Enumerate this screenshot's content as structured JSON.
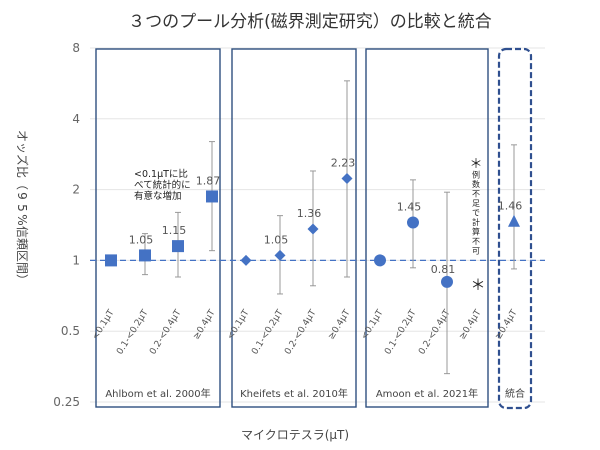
{
  "chart_data": {
    "type": "scatter",
    "title": "３つのプール分析(磁界測定研究）の比較と統合",
    "xlabel": "マイクロテスラ(μT)",
    "ylabel": "オッズ比（95%信頼区間）",
    "yscale": "log",
    "ylim": [
      0.25,
      8
    ],
    "yticks": [
      "0.25",
      "0.5",
      "1",
      "2",
      "4",
      "8"
    ],
    "reference_line": 1,
    "panels": [
      {
        "study": "Ahlbom et al. 2000年",
        "marker": "square",
        "annotation": "<0.1μTに比べて統計的に有意な増加",
        "points": [
          {
            "x": "<0.1μT",
            "or": 1,
            "lo": 1,
            "hi": 1,
            "label": ""
          },
          {
            "x": "0.1-<0.2μT",
            "or": 1.05,
            "lo": 0.87,
            "hi": 1.3,
            "label": "1.05"
          },
          {
            "x": "0.2-<0.4μT",
            "or": 1.15,
            "lo": 0.85,
            "hi": 1.6,
            "label": "1.15"
          },
          {
            "x": "≥0.4μT",
            "or": 1.87,
            "lo": 1.1,
            "hi": 3.2,
            "label": "1.87"
          }
        ]
      },
      {
        "study": "Kheifets et al. 2010年",
        "marker": "diamond",
        "annotation": "",
        "points": [
          {
            "x": "<0.1μT",
            "or": 1,
            "lo": 1,
            "hi": 1,
            "label": ""
          },
          {
            "x": "0.1-<0.2μT",
            "or": 1.05,
            "lo": 0.72,
            "hi": 1.55,
            "label": "1.05"
          },
          {
            "x": "0.2-<0.4μT",
            "or": 1.36,
            "lo": 0.78,
            "hi": 2.4,
            "label": "1.36"
          },
          {
            "x": "≥0.4μT",
            "or": 2.23,
            "lo": 0.85,
            "hi": 5.8,
            "label": "2.23"
          }
        ]
      },
      {
        "study": "Amoon et al. 2021年",
        "marker": "circle",
        "annotation": "＊例数不足で計算不可",
        "points": [
          {
            "x": "<0.1μT",
            "or": 1,
            "lo": 1,
            "hi": 1,
            "label": ""
          },
          {
            "x": "0.1-<0.2μT",
            "or": 1.45,
            "lo": 0.93,
            "hi": 2.2,
            "label": "1.45"
          },
          {
            "x": "0.2-<0.4μT",
            "or": 0.81,
            "lo": 0.33,
            "hi": 1.95,
            "label": "0.81"
          },
          {
            "x": "≥0.4μT",
            "or": null,
            "lo": null,
            "hi": null,
            "label": "＊"
          }
        ]
      },
      {
        "study": "統合",
        "marker": "triangle",
        "annotation": "",
        "points": [
          {
            "x": "≥0.4μT",
            "or": 1.46,
            "lo": 0.92,
            "hi": 3.1,
            "label": "1.46"
          }
        ]
      }
    ]
  },
  "colors": {
    "marker": "#4472C4",
    "panel_border": "#2F4F7F",
    "combined_border": "#2F4F8F",
    "ref_line": "#4472C4",
    "error_bar": "#999999",
    "grid": "#E5E5E5"
  }
}
